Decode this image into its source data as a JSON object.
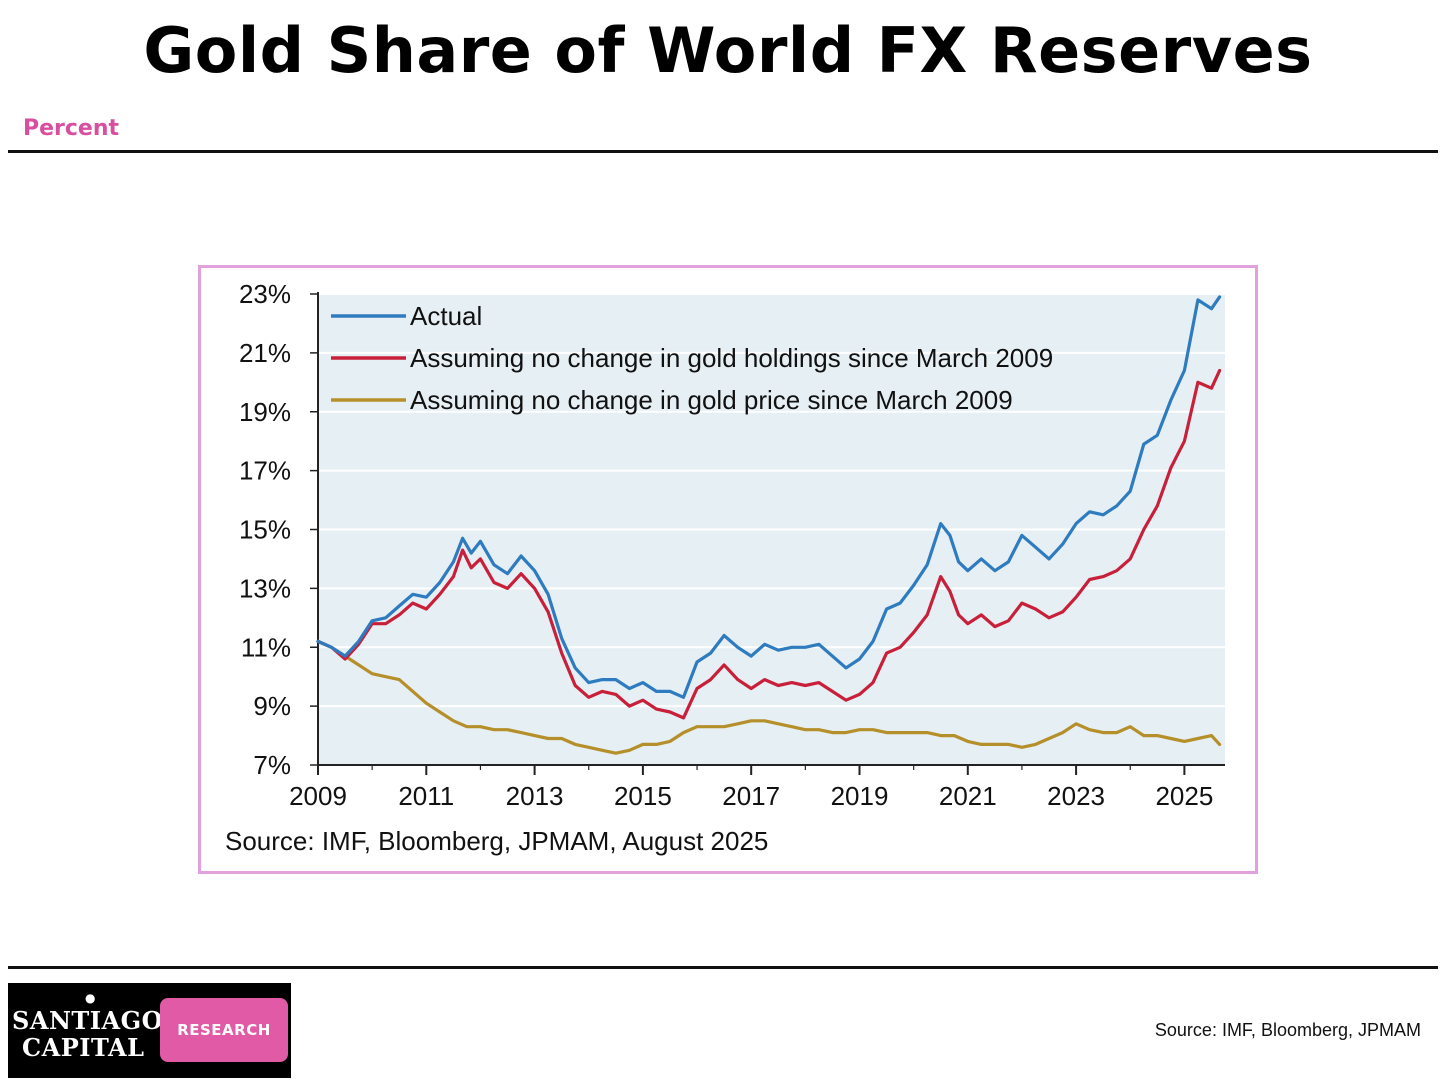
{
  "header": {
    "title": "Gold Share of World FX Reserves",
    "subtitle": "Percent"
  },
  "footer": {
    "logo_line1": "SANTIAGO",
    "logo_line2": "CAPITAL",
    "logo_badge": "RESEARCH",
    "source": "Source: IMF, Bloomberg, JPMAM"
  },
  "colors": {
    "accent_pink": "#d94fa0",
    "frame_border": "#e2a0dc",
    "plot_bg": "#e6eff4",
    "actual": "#2e7bbf",
    "holdings": "#c8203a",
    "price": "#b58f2a"
  },
  "chart_data": {
    "type": "line",
    "title": "",
    "xlabel": "",
    "ylabel": "",
    "xlim": [
      2009,
      2025.75
    ],
    "ylim": [
      7,
      23
    ],
    "x_ticks": [
      "2009",
      "2011",
      "2013",
      "2015",
      "2017",
      "2019",
      "2021",
      "2023",
      "2025"
    ],
    "x_tick_values": [
      2009,
      2011,
      2013,
      2015,
      2017,
      2019,
      2021,
      2023,
      2025
    ],
    "y_ticks": [
      "23%",
      "21%",
      "19%",
      "17%",
      "15%",
      "13%",
      "11%",
      "9%",
      "7%"
    ],
    "y_tick_values": [
      23,
      21,
      19,
      17,
      15,
      13,
      11,
      9,
      7
    ],
    "grid": true,
    "legend_position": "top-left",
    "source_note": "Source: IMF, Bloomberg, JPMAM, August 2025",
    "series": [
      {
        "name": "Actual",
        "color": "#2e7bbf",
        "x": [
          2009.0,
          2009.25,
          2009.5,
          2009.75,
          2010.0,
          2010.25,
          2010.5,
          2010.75,
          2011.0,
          2011.25,
          2011.5,
          2011.67,
          2011.83,
          2012.0,
          2012.25,
          2012.5,
          2012.75,
          2013.0,
          2013.25,
          2013.5,
          2013.75,
          2014.0,
          2014.25,
          2014.5,
          2014.75,
          2015.0,
          2015.25,
          2015.5,
          2015.75,
          2016.0,
          2016.25,
          2016.5,
          2016.75,
          2017.0,
          2017.25,
          2017.5,
          2017.75,
          2018.0,
          2018.25,
          2018.5,
          2018.75,
          2019.0,
          2019.25,
          2019.5,
          2019.75,
          2020.0,
          2020.25,
          2020.5,
          2020.67,
          2020.83,
          2021.0,
          2021.25,
          2021.5,
          2021.75,
          2022.0,
          2022.25,
          2022.5,
          2022.75,
          2023.0,
          2023.25,
          2023.5,
          2023.75,
          2024.0,
          2024.25,
          2024.5,
          2024.75,
          2025.0,
          2025.25,
          2025.5,
          2025.65
        ],
        "y": [
          11.2,
          11.0,
          10.7,
          11.2,
          11.9,
          12.0,
          12.4,
          12.8,
          12.7,
          13.2,
          13.9,
          14.7,
          14.2,
          14.6,
          13.8,
          13.5,
          14.1,
          13.6,
          12.8,
          11.3,
          10.3,
          9.8,
          9.9,
          9.9,
          9.6,
          9.8,
          9.5,
          9.5,
          9.3,
          10.5,
          10.8,
          11.4,
          11.0,
          10.7,
          11.1,
          10.9,
          11.0,
          11.0,
          11.1,
          10.7,
          10.3,
          10.6,
          11.2,
          12.3,
          12.5,
          13.1,
          13.8,
          15.2,
          14.8,
          13.9,
          13.6,
          14.0,
          13.6,
          13.9,
          14.8,
          14.4,
          14.0,
          14.5,
          15.2,
          15.6,
          15.5,
          15.8,
          16.3,
          17.9,
          18.2,
          19.4,
          20.4,
          22.8,
          22.5,
          22.9
        ]
      },
      {
        "name": "Assuming no change in gold holdings since March 2009",
        "color": "#c8203a",
        "x": [
          2009.0,
          2009.25,
          2009.5,
          2009.75,
          2010.0,
          2010.25,
          2010.5,
          2010.75,
          2011.0,
          2011.25,
          2011.5,
          2011.67,
          2011.83,
          2012.0,
          2012.25,
          2012.5,
          2012.75,
          2013.0,
          2013.25,
          2013.5,
          2013.75,
          2014.0,
          2014.25,
          2014.5,
          2014.75,
          2015.0,
          2015.25,
          2015.5,
          2015.75,
          2016.0,
          2016.25,
          2016.5,
          2016.75,
          2017.0,
          2017.25,
          2017.5,
          2017.75,
          2018.0,
          2018.25,
          2018.5,
          2018.75,
          2019.0,
          2019.25,
          2019.5,
          2019.75,
          2020.0,
          2020.25,
          2020.5,
          2020.67,
          2020.83,
          2021.0,
          2021.25,
          2021.5,
          2021.75,
          2022.0,
          2022.25,
          2022.5,
          2022.75,
          2023.0,
          2023.25,
          2023.5,
          2023.75,
          2024.0,
          2024.25,
          2024.5,
          2024.75,
          2025.0,
          2025.25,
          2025.5,
          2025.65
        ],
        "y": [
          11.2,
          11.0,
          10.6,
          11.1,
          11.8,
          11.8,
          12.1,
          12.5,
          12.3,
          12.8,
          13.4,
          14.3,
          13.7,
          14.0,
          13.2,
          13.0,
          13.5,
          13.0,
          12.2,
          10.8,
          9.7,
          9.3,
          9.5,
          9.4,
          9.0,
          9.2,
          8.9,
          8.8,
          8.6,
          9.6,
          9.9,
          10.4,
          9.9,
          9.6,
          9.9,
          9.7,
          9.8,
          9.7,
          9.8,
          9.5,
          9.2,
          9.4,
          9.8,
          10.8,
          11.0,
          11.5,
          12.1,
          13.4,
          12.9,
          12.1,
          11.8,
          12.1,
          11.7,
          11.9,
          12.5,
          12.3,
          12.0,
          12.2,
          12.7,
          13.3,
          13.4,
          13.6,
          14.0,
          15.0,
          15.8,
          17.1,
          18.0,
          20.0,
          19.8,
          20.4
        ]
      },
      {
        "name": "Assuming no change in gold price since March 2009",
        "color": "#b58f2a",
        "x": [
          2009.0,
          2009.25,
          2009.5,
          2009.75,
          2010.0,
          2010.25,
          2010.5,
          2010.75,
          2011.0,
          2011.25,
          2011.5,
          2011.75,
          2012.0,
          2012.25,
          2012.5,
          2012.75,
          2013.0,
          2013.25,
          2013.5,
          2013.75,
          2014.0,
          2014.25,
          2014.5,
          2014.75,
          2015.0,
          2015.25,
          2015.5,
          2015.75,
          2016.0,
          2016.25,
          2016.5,
          2016.75,
          2017.0,
          2017.25,
          2017.5,
          2017.75,
          2018.0,
          2018.25,
          2018.5,
          2018.75,
          2019.0,
          2019.25,
          2019.5,
          2019.75,
          2020.0,
          2020.25,
          2020.5,
          2020.75,
          2021.0,
          2021.25,
          2021.5,
          2021.75,
          2022.0,
          2022.25,
          2022.5,
          2022.75,
          2023.0,
          2023.25,
          2023.5,
          2023.75,
          2024.0,
          2024.25,
          2024.5,
          2024.75,
          2025.0,
          2025.25,
          2025.5,
          2025.65
        ],
        "y": [
          11.2,
          11.0,
          10.7,
          10.4,
          10.1,
          10.0,
          9.9,
          9.5,
          9.1,
          8.8,
          8.5,
          8.3,
          8.3,
          8.2,
          8.2,
          8.1,
          8.0,
          7.9,
          7.9,
          7.7,
          7.6,
          7.5,
          7.4,
          7.5,
          7.7,
          7.7,
          7.8,
          8.1,
          8.3,
          8.3,
          8.3,
          8.4,
          8.5,
          8.5,
          8.4,
          8.3,
          8.2,
          8.2,
          8.1,
          8.1,
          8.2,
          8.2,
          8.1,
          8.1,
          8.1,
          8.1,
          8.0,
          8.0,
          7.8,
          7.7,
          7.7,
          7.7,
          7.6,
          7.7,
          7.9,
          8.1,
          8.4,
          8.2,
          8.1,
          8.1,
          8.3,
          8.0,
          8.0,
          7.9,
          7.8,
          7.9,
          8.0,
          7.7
        ]
      }
    ]
  }
}
